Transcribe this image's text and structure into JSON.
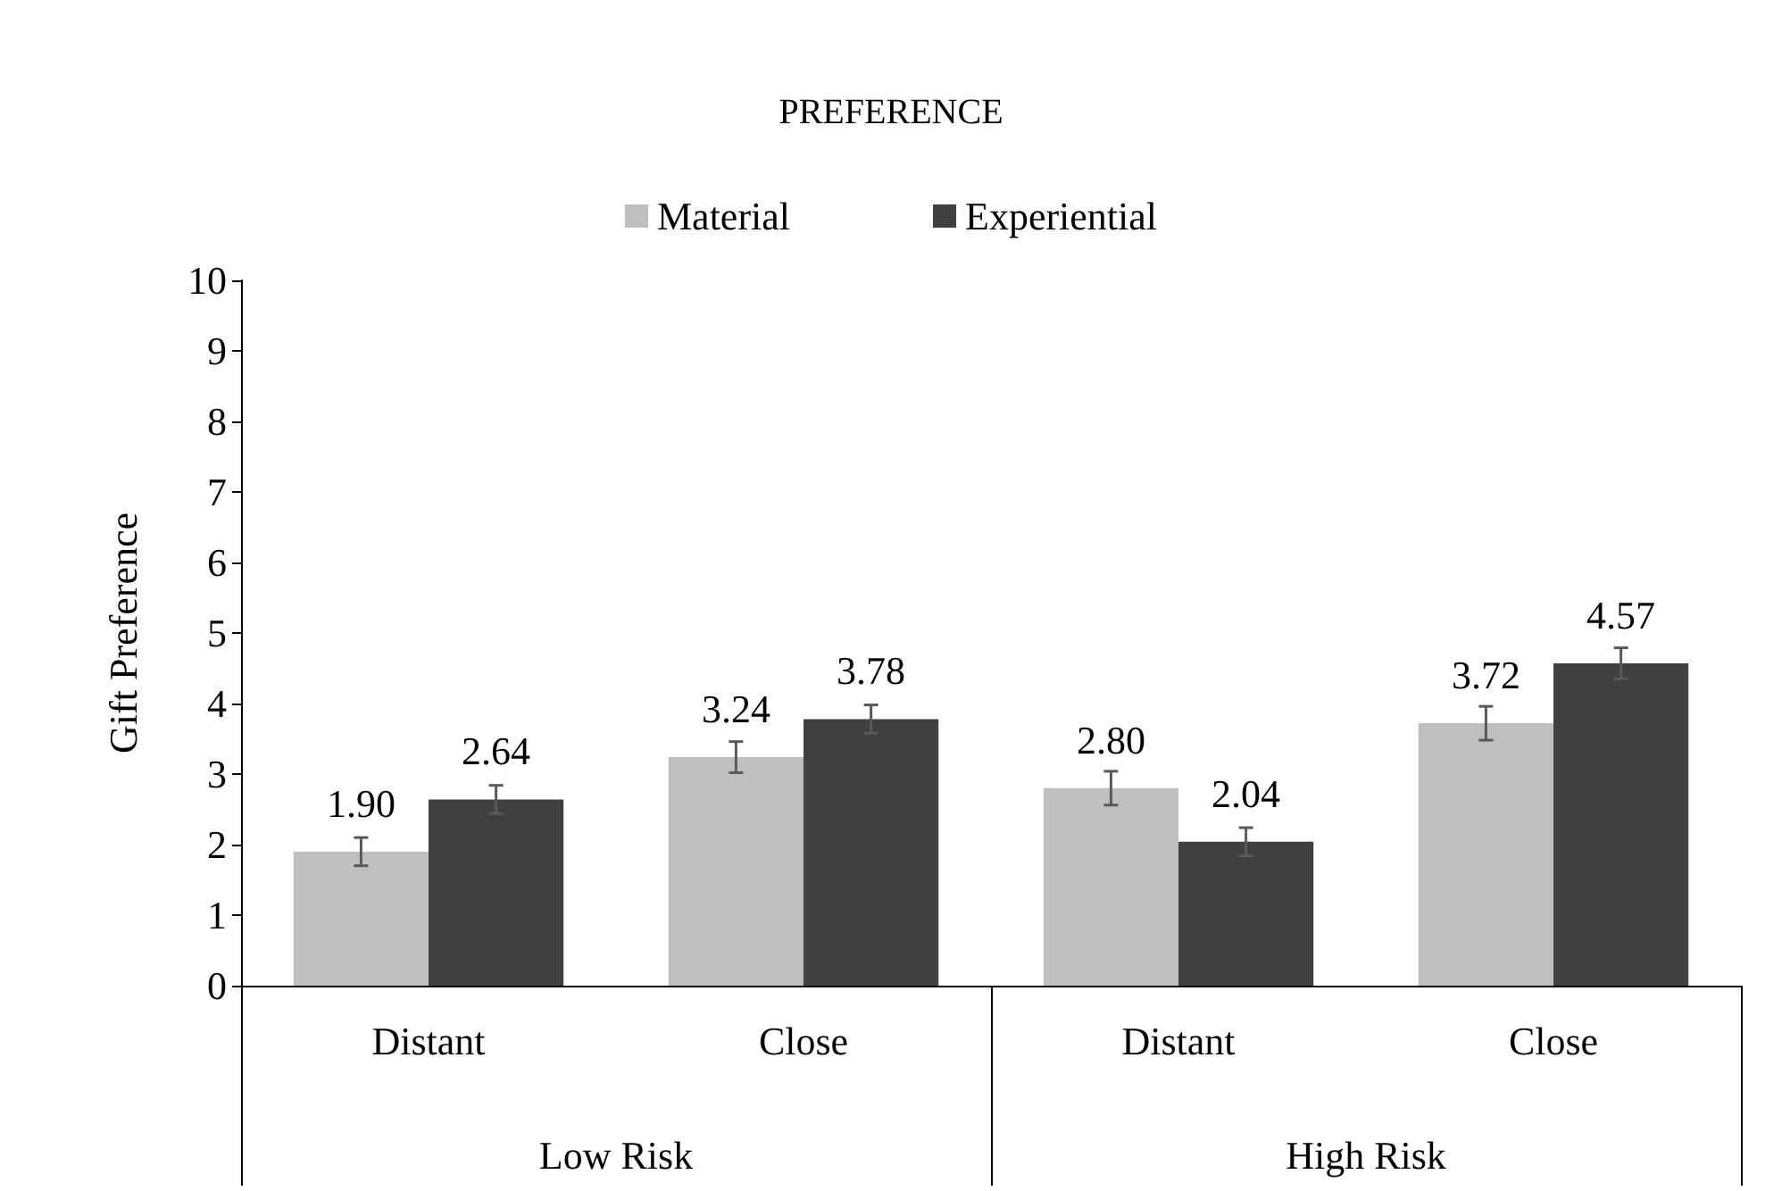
{
  "chart_data": {
    "type": "bar",
    "title": "PREFERENCE",
    "ylabel": "Gift Preference",
    "categories": [
      "Distant",
      "Close",
      "Distant",
      "Close"
    ],
    "annotations": [
      "Low Risk",
      "High Risk"
    ],
    "series": [
      {
        "name": "Material",
        "color": "#bfbfbf",
        "values": [
          1.9,
          3.24,
          2.8,
          3.72
        ],
        "value_labels": [
          "1.90",
          "3.24",
          "2.80",
          "3.72"
        ],
        "errors": [
          0.2,
          0.22,
          0.24,
          0.24
        ]
      },
      {
        "name": "Experiential",
        "color": "#404040",
        "values": [
          2.64,
          3.78,
          2.04,
          4.57
        ],
        "value_labels": [
          "2.64",
          "3.78",
          "2.04",
          "4.57"
        ],
        "errors": [
          0.2,
          0.2,
          0.2,
          0.22
        ]
      }
    ],
    "ylim": [
      0,
      10
    ],
    "yticks": [
      0,
      1,
      2,
      3,
      4,
      5,
      6,
      7,
      8,
      9,
      10
    ],
    "grid": false,
    "legend": "top"
  }
}
